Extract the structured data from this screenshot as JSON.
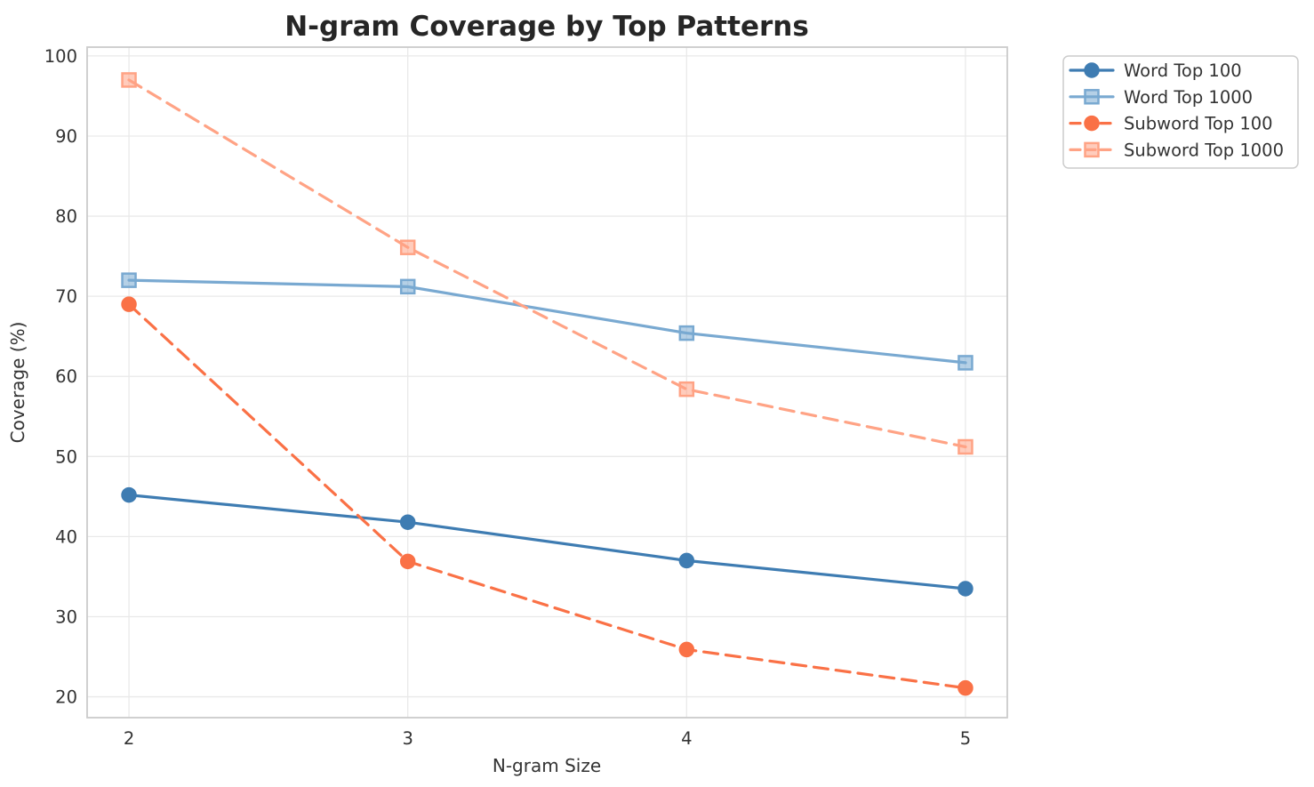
{
  "chart_data": {
    "type": "line",
    "title": "N-gram Coverage by Top Patterns",
    "xlabel": "N-gram Size",
    "ylabel": "Coverage (%)",
    "x": [
      2,
      3,
      4,
      5
    ],
    "series": [
      {
        "name": "Word Top 100",
        "values": [
          45.2,
          41.8,
          37.0,
          33.5
        ],
        "color": "#3e7cb2",
        "line_style": "solid",
        "marker": "circle"
      },
      {
        "name": "Word Top 1000",
        "values": [
          72.0,
          71.2,
          65.4,
          61.7
        ],
        "color": "#79a9d1",
        "line_style": "solid",
        "marker": "square"
      },
      {
        "name": "Subword Top 100",
        "values": [
          69.0,
          36.9,
          25.9,
          21.1
        ],
        "color": "#fa7146",
        "line_style": "dashed",
        "marker": "circle"
      },
      {
        "name": "Subword Top 1000",
        "values": [
          97.0,
          76.1,
          58.4,
          51.2
        ],
        "color": "#ffa385",
        "line_style": "dashed",
        "marker": "square"
      }
    ],
    "xticks": [
      2,
      3,
      4,
      5
    ],
    "yticks": [
      20,
      30,
      40,
      50,
      60,
      70,
      80,
      90,
      100
    ],
    "xlim": [
      1.85,
      5.15
    ],
    "ylim": [
      17.4,
      101.1
    ],
    "grid": true,
    "legend_position": "outside-top-right",
    "colors": {
      "grid": "#e9e9e9",
      "spine": "#cbcbcb",
      "text": "#333333",
      "title": "#262626",
      "legend_border": "#cccccc",
      "background": "#ffffff"
    }
  }
}
